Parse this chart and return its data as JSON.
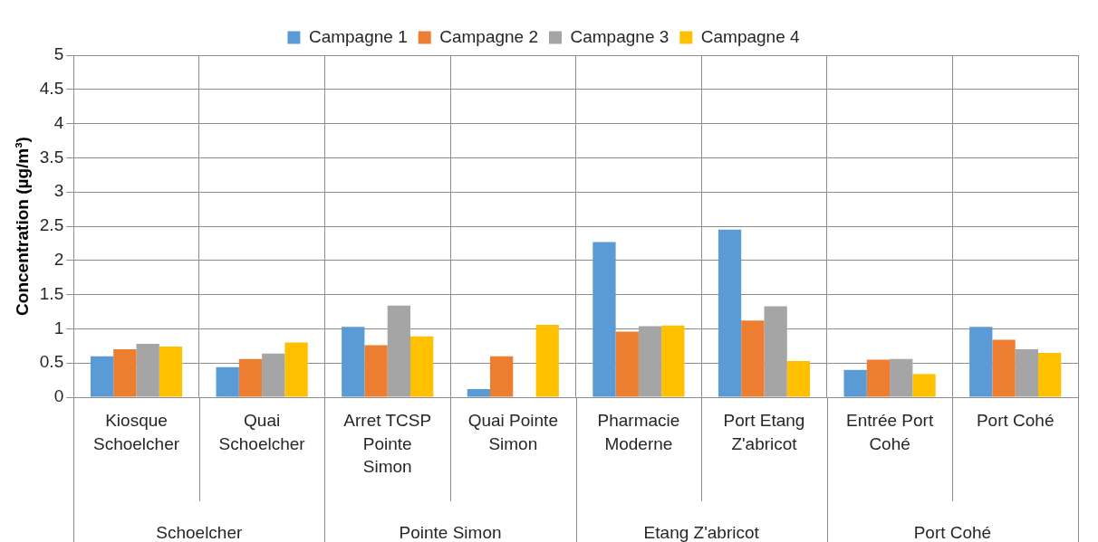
{
  "chart_data": {
    "type": "bar",
    "ylabel": "Concentration (µg/m³)",
    "categories": [
      "Kiosque Schoelcher",
      "Quai Schoelcher",
      "Arret TCSP Pointe Simon",
      "Quai Pointe Simon",
      "Pharmacie Moderne",
      "Port Etang Z'abricot",
      "Entrée Port Cohé",
      "Port Cohé"
    ],
    "series": [
      {
        "name": "Campagne 1",
        "color": "#5b9bd5",
        "values": [
          0.6,
          0.44,
          1.03,
          0.12,
          2.27,
          2.45,
          0.4,
          1.03
        ]
      },
      {
        "name": "Campagne 2",
        "color": "#ed7d31",
        "values": [
          0.7,
          0.56,
          0.76,
          0.6,
          0.96,
          1.12,
          0.55,
          0.84
        ]
      },
      {
        "name": "Campagne 3",
        "color": "#a5a5a5",
        "values": [
          0.78,
          0.64,
          1.34,
          null,
          1.04,
          1.33,
          0.56,
          0.7
        ]
      },
      {
        "name": "Campagne 4",
        "color": "#ffc000",
        "values": [
          0.74,
          0.8,
          0.89,
          1.06,
          1.05,
          0.53,
          0.34,
          0.65
        ]
      }
    ],
    "annotations": [
      "Schoelcher",
      "Pointe Simon",
      "Etang Z'abricot",
      "Port Cohé"
    ],
    "ylim": [
      0,
      5
    ],
    "yticks": [
      0,
      0.5,
      1,
      1.5,
      2,
      2.5,
      3,
      3.5,
      4,
      4.5,
      5
    ],
    "grid": true,
    "legend": "top"
  }
}
